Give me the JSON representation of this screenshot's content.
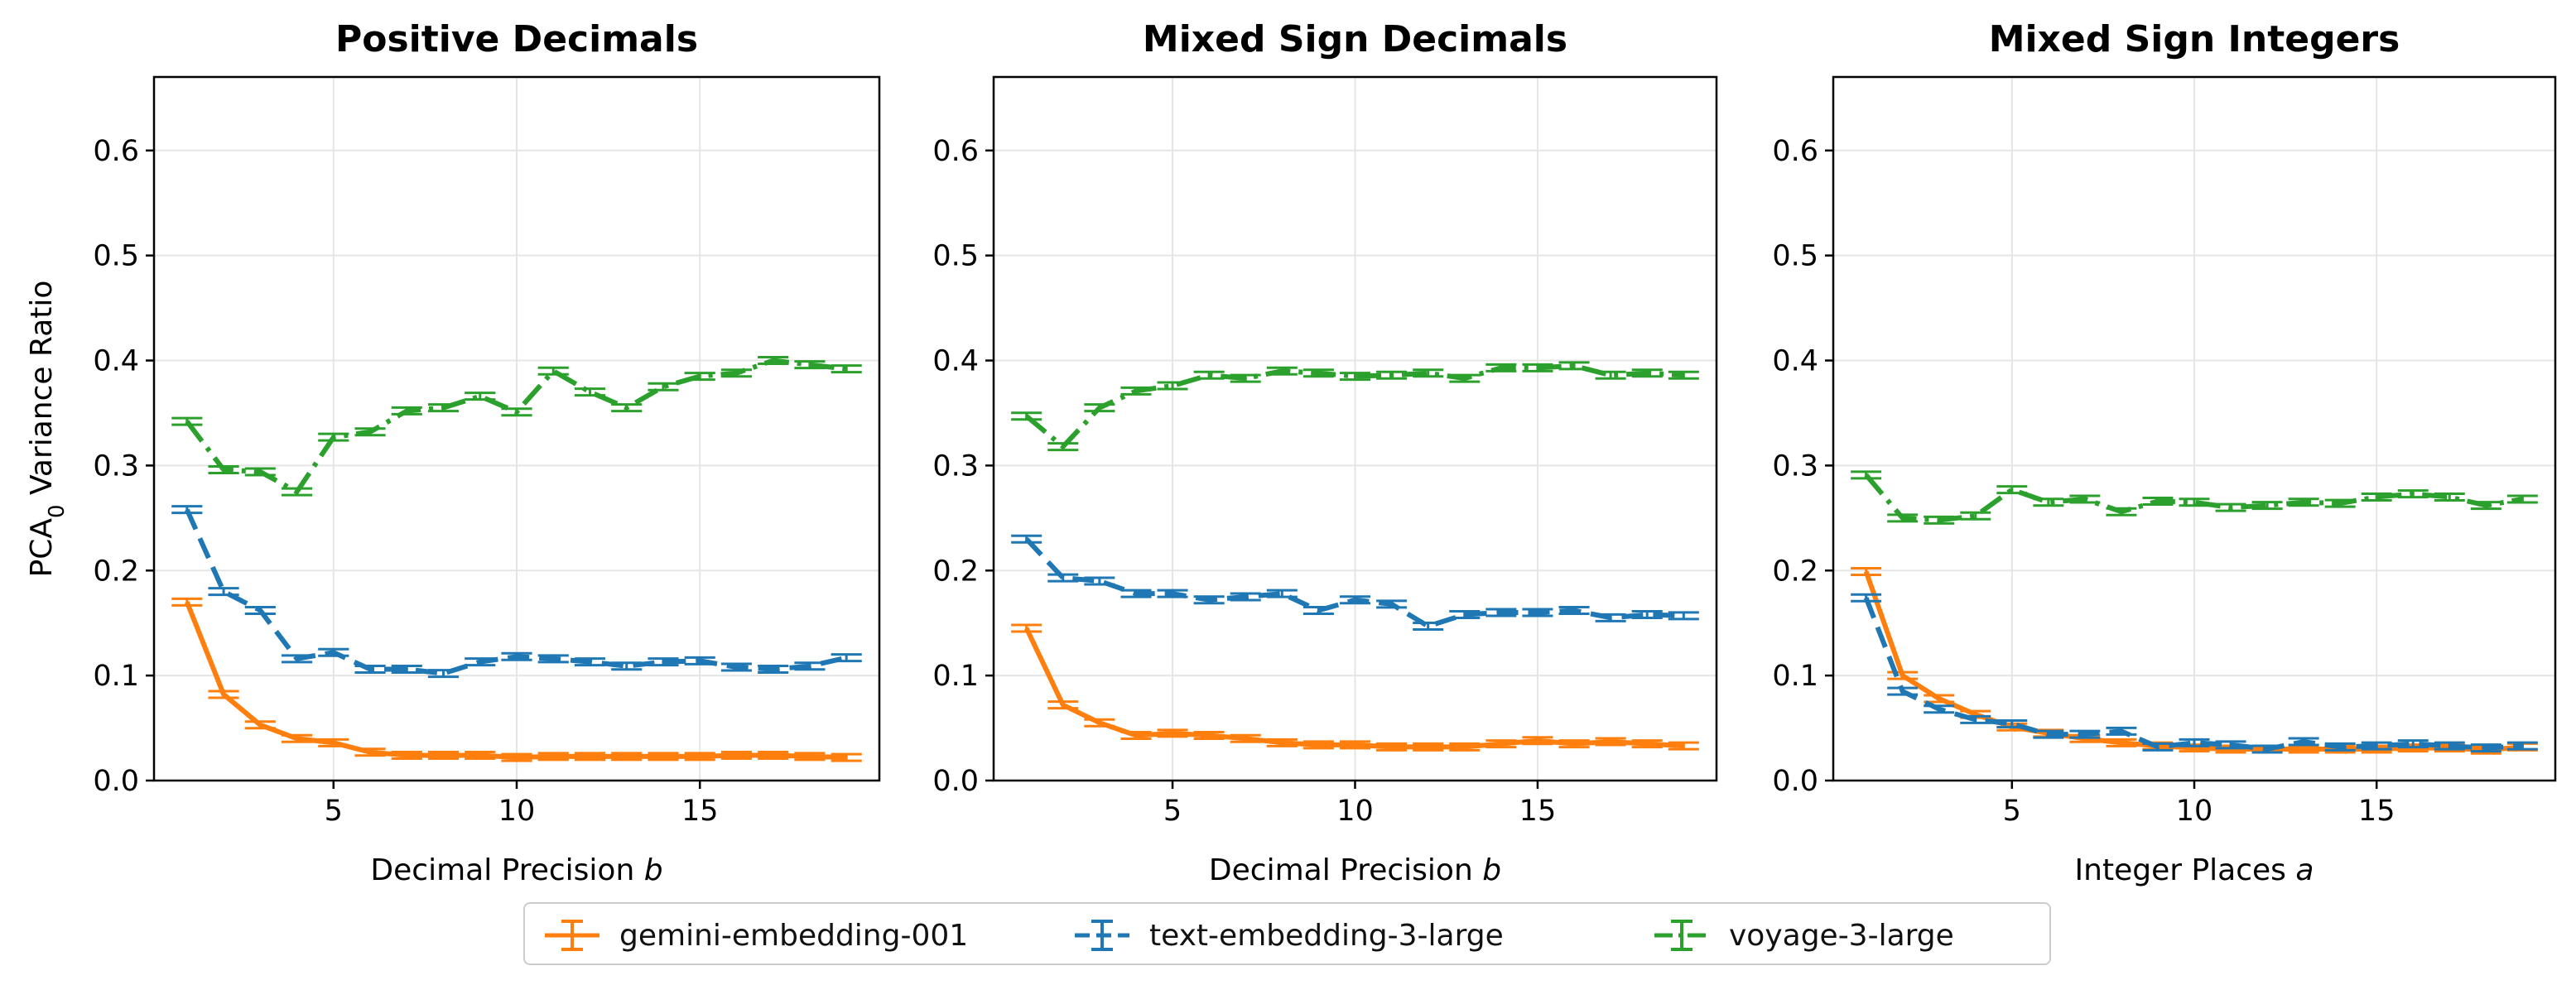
{
  "colors": {
    "gemini": "#ff7f0e",
    "text3": "#1f77b4",
    "voyage": "#2ca02c",
    "grid": "#e5e5e5",
    "axis": "#000000"
  },
  "legend": {
    "gemini": "gemini-embedding-001",
    "text3": "text-embedding-3-large",
    "voyage": "voyage-3-large"
  },
  "chart_data": [
    {
      "type": "line",
      "title": "Positive Decimals",
      "xlabel": "Decimal Precision b",
      "ylabel": "PCA0 Variance Ratio",
      "ylim": [
        0,
        0.67
      ],
      "xlim": [
        0.1,
        19.9
      ],
      "xticks": [
        5,
        10,
        15
      ],
      "yticks": [
        0.0,
        0.1,
        0.2,
        0.3,
        0.4,
        0.5,
        0.6
      ],
      "series": [
        {
          "name": "gemini-embedding-001",
          "color_key": "gemini",
          "dash": "solid",
          "x": [
            1,
            2,
            3,
            4,
            5,
            6,
            7,
            8,
            9,
            10,
            11,
            12,
            13,
            14,
            15,
            16,
            17,
            18,
            19
          ],
          "values": [
            0.17,
            0.082,
            0.053,
            0.04,
            0.036,
            0.027,
            0.024,
            0.024,
            0.024,
            0.022,
            0.023,
            0.023,
            0.023,
            0.023,
            0.023,
            0.024,
            0.024,
            0.023,
            0.022
          ]
        },
        {
          "name": "text-embedding-3-large",
          "color_key": "text3",
          "dash": "dashed",
          "x": [
            1,
            2,
            3,
            4,
            5,
            6,
            7,
            8,
            9,
            10,
            11,
            12,
            13,
            14,
            15,
            16,
            17,
            18,
            19
          ],
          "values": [
            0.258,
            0.18,
            0.162,
            0.116,
            0.122,
            0.106,
            0.106,
            0.102,
            0.113,
            0.118,
            0.116,
            0.113,
            0.109,
            0.113,
            0.114,
            0.108,
            0.106,
            0.109,
            0.117
          ]
        },
        {
          "name": "voyage-3-large",
          "color_key": "voyage",
          "dash": "dashdot",
          "x": [
            1,
            2,
            3,
            4,
            5,
            6,
            7,
            8,
            9,
            10,
            11,
            12,
            13,
            14,
            15,
            16,
            17,
            18,
            19
          ],
          "values": [
            0.342,
            0.296,
            0.294,
            0.275,
            0.327,
            0.332,
            0.352,
            0.355,
            0.366,
            0.351,
            0.39,
            0.37,
            0.355,
            0.375,
            0.385,
            0.388,
            0.4,
            0.396,
            0.392
          ]
        }
      ]
    },
    {
      "type": "line",
      "title": "Mixed Sign Decimals",
      "xlabel": "Decimal Precision b",
      "ylabel": "",
      "ylim": [
        0,
        0.67
      ],
      "xlim": [
        0.1,
        19.9
      ],
      "xticks": [
        5,
        10,
        15
      ],
      "yticks": [
        0.0,
        0.1,
        0.2,
        0.3,
        0.4,
        0.5,
        0.6
      ],
      "series": [
        {
          "name": "gemini-embedding-001",
          "color_key": "gemini",
          "dash": "solid",
          "x": [
            1,
            2,
            3,
            4,
            5,
            6,
            7,
            8,
            9,
            10,
            11,
            12,
            13,
            14,
            15,
            16,
            17,
            18,
            19
          ],
          "values": [
            0.145,
            0.072,
            0.055,
            0.043,
            0.045,
            0.043,
            0.04,
            0.036,
            0.034,
            0.034,
            0.032,
            0.032,
            0.032,
            0.035,
            0.038,
            0.035,
            0.037,
            0.035,
            0.033
          ]
        },
        {
          "name": "text-embedding-3-large",
          "color_key": "text3",
          "dash": "dashed",
          "x": [
            1,
            2,
            3,
            4,
            5,
            6,
            7,
            8,
            9,
            10,
            11,
            12,
            13,
            14,
            15,
            16,
            17,
            18,
            19
          ],
          "values": [
            0.23,
            0.193,
            0.19,
            0.178,
            0.178,
            0.172,
            0.175,
            0.178,
            0.162,
            0.172,
            0.168,
            0.147,
            0.158,
            0.16,
            0.16,
            0.162,
            0.155,
            0.158,
            0.157
          ]
        },
        {
          "name": "voyage-3-large",
          "color_key": "voyage",
          "dash": "dashdot",
          "x": [
            1,
            2,
            3,
            4,
            5,
            6,
            7,
            8,
            9,
            10,
            11,
            12,
            13,
            14,
            15,
            16,
            17,
            18,
            19
          ],
          "values": [
            0.347,
            0.318,
            0.355,
            0.371,
            0.376,
            0.386,
            0.383,
            0.39,
            0.388,
            0.385,
            0.386,
            0.388,
            0.383,
            0.393,
            0.393,
            0.395,
            0.386,
            0.388,
            0.386
          ]
        }
      ]
    },
    {
      "type": "line",
      "title": "Mixed Sign Integers",
      "xlabel": "Integer Places a",
      "ylabel": "",
      "ylim": [
        0,
        0.67
      ],
      "xlim": [
        0.1,
        19.9
      ],
      "xticks": [
        5,
        10,
        15
      ],
      "yticks": [
        0.0,
        0.1,
        0.2,
        0.3,
        0.4,
        0.5,
        0.6
      ],
      "series": [
        {
          "name": "gemini-embedding-001",
          "color_key": "gemini",
          "dash": "solid",
          "x": [
            1,
            2,
            3,
            4,
            5,
            6,
            7,
            8,
            9,
            10,
            11,
            12,
            13,
            14,
            15,
            16,
            17,
            18,
            19
          ],
          "values": [
            0.199,
            0.1,
            0.078,
            0.063,
            0.051,
            0.045,
            0.04,
            0.036,
            0.033,
            0.031,
            0.03,
            0.03,
            0.03,
            0.03,
            0.03,
            0.031,
            0.031,
            0.029,
            0.032
          ]
        },
        {
          "name": "text-embedding-3-large",
          "color_key": "text3",
          "dash": "dashed",
          "x": [
            1,
            2,
            3,
            4,
            5,
            6,
            7,
            8,
            9,
            10,
            11,
            12,
            13,
            14,
            15,
            16,
            17,
            18,
            19
          ],
          "values": [
            0.174,
            0.085,
            0.068,
            0.058,
            0.054,
            0.044,
            0.044,
            0.047,
            0.032,
            0.036,
            0.034,
            0.03,
            0.037,
            0.032,
            0.033,
            0.035,
            0.033,
            0.031,
            0.033
          ]
        },
        {
          "name": "voyage-3-large",
          "color_key": "voyage",
          "dash": "dashdot",
          "x": [
            1,
            2,
            3,
            4,
            5,
            6,
            7,
            8,
            9,
            10,
            11,
            12,
            13,
            14,
            15,
            16,
            17,
            18,
            19
          ],
          "values": [
            0.291,
            0.25,
            0.248,
            0.252,
            0.277,
            0.265,
            0.268,
            0.256,
            0.266,
            0.265,
            0.26,
            0.262,
            0.265,
            0.264,
            0.27,
            0.273,
            0.27,
            0.262,
            0.268
          ]
        }
      ]
    }
  ]
}
